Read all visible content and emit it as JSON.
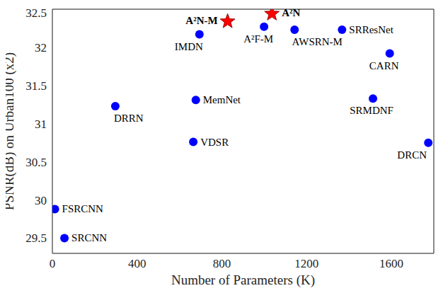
{
  "chart_data": {
    "type": "scatter",
    "x_label": "Number of Parameters (K)",
    "y_label": "PSNR(dB) on Urban100 (x2)",
    "xlim": [
      0,
      1800
    ],
    "xticks": [
      0,
      400,
      800,
      1200,
      1600
    ],
    "ylim": [
      29.3,
      32.5
    ],
    "yticks": [
      29.5,
      30,
      30.5,
      31,
      31.5,
      32,
      32.5
    ],
    "grid": true,
    "series": [
      {
        "color": "#0000ff",
        "marker": "circle",
        "labels": [
          "FSRCNN",
          "SRCNN",
          "DRRN",
          "VDSR",
          "MemNet",
          "IMDN",
          "A²F-M",
          "AWSRN-M",
          "SRResNet",
          "CARN",
          "SRMDNF",
          "DRCN"
        ],
        "x": [
          12,
          57,
          297,
          665,
          677,
          694,
          999,
          1143,
          1367,
          1592,
          1513,
          1774
        ],
        "values": [
          29.88,
          29.5,
          31.23,
          30.76,
          31.31,
          32.17,
          32.27,
          32.23,
          32.23,
          31.92,
          31.33,
          30.75
        ]
      },
      {
        "color": "#ff0000",
        "marker": "star",
        "labels": [
          "A²N-M",
          "A²N"
        ],
        "x": [
          827,
          1036
        ],
        "values": [
          32.34,
          32.44
        ]
      }
    ]
  }
}
